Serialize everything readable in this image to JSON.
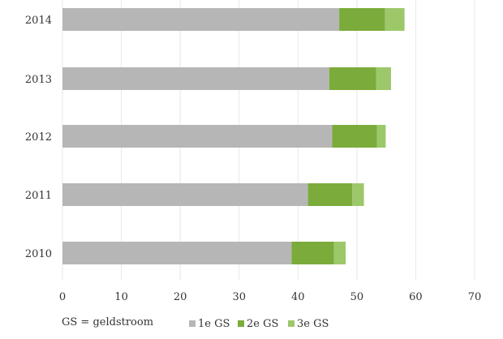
{
  "chart_data": {
    "type": "bar",
    "orientation": "horizontal",
    "stacked": true,
    "categories": [
      "2014",
      "2013",
      "2012",
      "2011",
      "2010"
    ],
    "series": [
      {
        "name": "1e GS",
        "color": "#b6b6b6",
        "values": [
          47.0,
          45.3,
          45.8,
          41.7,
          38.9
        ]
      },
      {
        "name": "2e GS",
        "color": "#7bab3a",
        "values": [
          7.8,
          8.0,
          7.6,
          7.5,
          7.2
        ]
      },
      {
        "name": "3e GS",
        "color": "#9cc86a",
        "values": [
          3.3,
          2.5,
          1.5,
          2.0,
          2.0
        ]
      }
    ],
    "xlim": [
      0,
      70
    ],
    "xticks": [
      "0",
      "10",
      "20",
      "30",
      "40",
      "50",
      "60",
      "70"
    ],
    "grid": true,
    "legend_position": "bottom",
    "title": "",
    "xlabel": "",
    "ylabel": ""
  },
  "footnote": "GS = geldstroom"
}
